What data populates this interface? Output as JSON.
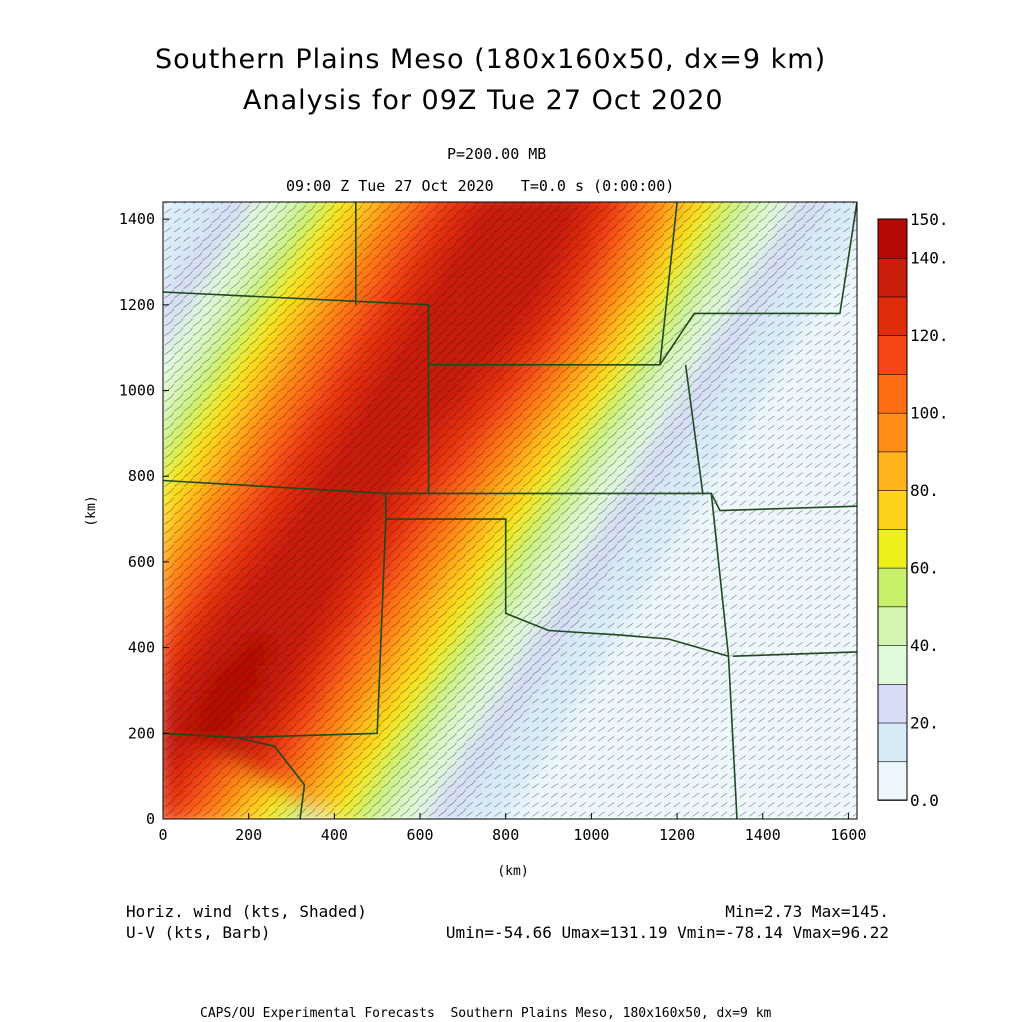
{
  "header": {
    "title_line1": "Southern Plains Meso (180x160x50, dx=9 km)",
    "title_line2": "Analysis for 09Z Tue 27 Oct 2020",
    "level": "P=200.00 MB",
    "valid_time": "09:00 Z Tue 27 Oct 2020   T=0.0 s (0:00:00)"
  },
  "footer": {
    "field1": "Horiz. wind (kts, Shaded)",
    "field2": "U-V (kts, Barb)",
    "stats1": "Min=2.73 Max=145.",
    "stats2": "Umin=-54.66 Umax=131.19 Vmin=-78.14 Vmax=96.22",
    "credit": "CAPS/OU Experimental Forecasts  Southern Plains Meso, 180x160x50, dx=9 km"
  },
  "colors": {
    "boundary": "#1e4a1e",
    "barb": "#2a1a1a"
  },
  "chart_data": {
    "type": "heatmap",
    "xlabel": "(km)",
    "ylabel": "(km)",
    "xlim": [
      0,
      1620
    ],
    "ylim": [
      0,
      1440
    ],
    "x_ticks": [
      "0",
      "200",
      "400",
      "600",
      "800",
      "1000",
      "1200",
      "1400",
      "1600"
    ],
    "y_ticks": [
      "0",
      "200",
      "400",
      "600",
      "800",
      "1000",
      "1200",
      "1400"
    ],
    "colorbar": {
      "labels": [
        "150.",
        "140.",
        "120.",
        "100.",
        "80.",
        "60.",
        "40.",
        "20.",
        "0.0"
      ],
      "bin_bounds": [
        0,
        10,
        20,
        30,
        40,
        50,
        60,
        70,
        80,
        90,
        100,
        110,
        120,
        130,
        140,
        150
      ],
      "bin_colors": [
        "#eef8fc",
        "#d8ecf8",
        "#d6dcf6",
        "#e0fadc",
        "#d4f5b0",
        "#c8f06a",
        "#eef01e",
        "#ffd21e",
        "#ffb41e",
        "#ff8c14",
        "#ff6e14",
        "#f54614",
        "#e12c0c",
        "#c81e0a",
        "#b40a06"
      ]
    },
    "wind_speed_min": 2.73,
    "wind_speed_max": 145.0,
    "u_min": -54.66,
    "u_max": 131.19,
    "v_min": -78.14,
    "v_max": 96.22
  }
}
